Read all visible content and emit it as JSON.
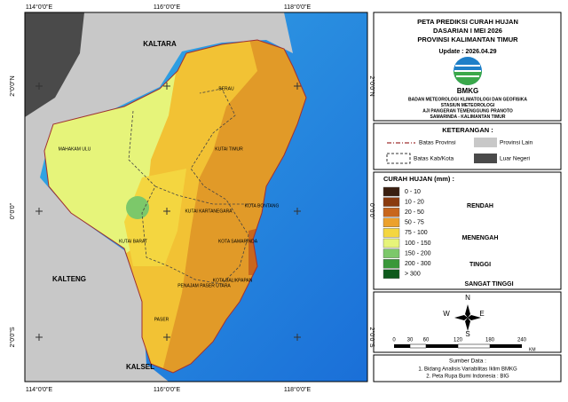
{
  "map": {
    "grid_labels": {
      "top": [
        "114°0'0\"E",
        "116°0'0\"E",
        "118°0'0\"E"
      ],
      "bottom": [
        "114°0'0\"E",
        "116°0'0\"E",
        "118°0'0\"E"
      ],
      "left": [
        "2°0'0\"N",
        "0°0'0\"",
        "2°0'0\"S"
      ],
      "right": [
        "2°0'0\"N",
        "0°0'0\"",
        "2°0'0\"S"
      ]
    },
    "regions": [
      "KALTARA",
      "KALTENG",
      "KALSEL",
      "MAHAKAM ULU",
      "BERAU",
      "KUTAI TIMUR",
      "KUTAI KARTANEGARA",
      "KOTA BONTANG",
      "KUTAI BARAT",
      "KOTA SAMARINDA",
      "PENAJAM PASER UTARA",
      "KOTA BALIKPAPAN",
      "PASER"
    ]
  },
  "header": {
    "title": [
      "PETA PREDIKSI CURAH HUJAN",
      "DASARIAN I MEI 2026",
      "PROVINSI KALIMANTAN TIMUR"
    ],
    "update": "Update : 2026.04.29",
    "logo": "BMKG",
    "agency": [
      "BADAN METEOROLOGI KLIMATOLOGI DAN GEOFISIKA",
      "STASIUN METEOROLOGI",
      "AJI PANGERAN TEMENGGUNG PRANOTO",
      "SAMARINDA - KALIMANTAN TIMUR"
    ]
  },
  "keterangan": {
    "title": "KETERANGAN :",
    "items": [
      "Batas Provinsi",
      "Provinsi Lain",
      "Batas Kab/Kota",
      "Luar Negeri"
    ]
  },
  "legend": {
    "title": "CURAH HUJAN (mm) :",
    "classes": [
      {
        "label": "0 - 10",
        "color": "#3a1f10"
      },
      {
        "label": "10 - 20",
        "color": "#8a3a0e"
      },
      {
        "label": "20 - 50",
        "color": "#c8661c"
      },
      {
        "label": "50 - 75",
        "color": "#eca12c"
      },
      {
        "label": "75 - 100",
        "color": "#f4d640"
      },
      {
        "label": "100 - 150",
        "color": "#e6f47a"
      },
      {
        "label": "150 - 200",
        "color": "#7cc86a"
      },
      {
        "label": "200 - 300",
        "color": "#3a983a"
      },
      {
        "label": "> 300",
        "color": "#0e5a1c"
      }
    ],
    "groups": [
      "RENDAH",
      "MENENGAH",
      "TINGGI",
      "SANGAT TINGGI"
    ]
  },
  "compass": [
    "N",
    "S",
    "E",
    "W"
  ],
  "scale": {
    "ticks": [
      "0",
      "30",
      "60",
      "120",
      "180",
      "240"
    ],
    "unit": "KM"
  },
  "source": {
    "title": "Sumber Data :",
    "items": [
      "1. Bidang Analisis Variabilitas Iklim BMKG",
      "2. Peta Rupa Bumi Indonesia : BIG"
    ]
  }
}
